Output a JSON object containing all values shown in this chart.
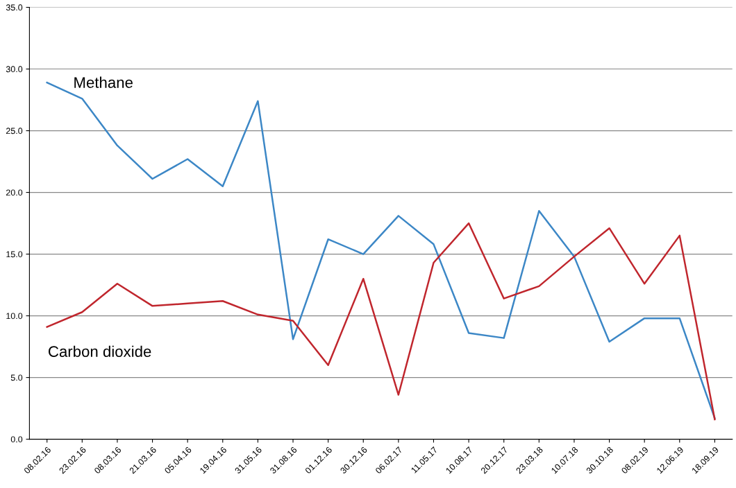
{
  "chart_data": {
    "type": "line",
    "categories": [
      "08.02.16",
      "23.02.16",
      "08.03.16",
      "21.03.16",
      "05.04.16",
      "19.04.16",
      "31.05.16",
      "31.08.16",
      "01.12.16",
      "30.12.16",
      "06.02.17",
      "11.05.17",
      "10.08.17",
      "20.12.17",
      "23.03.18",
      "10.07.18",
      "30.10.18",
      "08.02.19",
      "12.06.19",
      "18.09.19"
    ],
    "series": [
      {
        "name": "Methane",
        "color": "#3c87c6",
        "values": [
          28.9,
          27.6,
          23.8,
          21.1,
          22.7,
          20.5,
          27.4,
          8.1,
          16.2,
          15.0,
          18.1,
          15.8,
          8.6,
          8.2,
          18.5,
          14.8,
          7.9,
          9.8,
          9.8,
          1.7
        ]
      },
      {
        "name": "Carbon dioxide",
        "color": "#c0262d",
        "values": [
          9.1,
          10.3,
          12.6,
          10.8,
          11.0,
          11.2,
          10.1,
          9.6,
          6.0,
          13.0,
          3.6,
          14.3,
          17.5,
          11.4,
          12.4,
          14.8,
          17.1,
          12.6,
          16.5,
          1.6
        ]
      }
    ],
    "ylim": [
      0,
      35
    ],
    "yticks": [
      {
        "value": 0,
        "label": "0.0"
      },
      {
        "value": 5,
        "label": "5.0"
      },
      {
        "value": 10,
        "label": "10.0"
      },
      {
        "value": 15,
        "label": "15.0"
      },
      {
        "value": 20,
        "label": "20.0"
      },
      {
        "value": 25,
        "label": "25.0"
      },
      {
        "value": 30,
        "label": "30.0"
      },
      {
        "value": 35,
        "label": "35.0"
      }
    ],
    "grid": "y",
    "legend": false,
    "marker": "none",
    "line_style": "solid"
  }
}
